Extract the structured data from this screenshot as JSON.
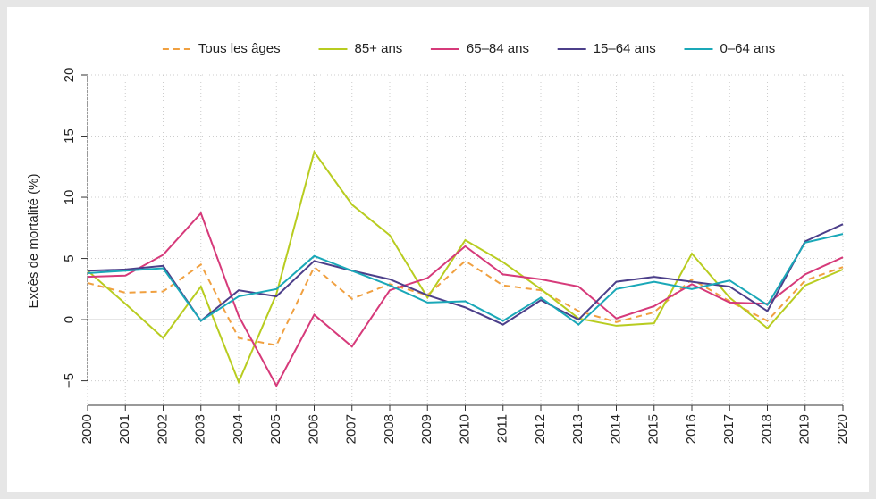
{
  "chart_data": {
    "type": "line",
    "y_label": "Excès de mortalité (%)",
    "x": [
      2000,
      2001,
      2002,
      2003,
      2004,
      2005,
      2006,
      2007,
      2008,
      2009,
      2010,
      2011,
      2012,
      2013,
      2014,
      2015,
      2016,
      2017,
      2018,
      2019,
      2020
    ],
    "xlim": [
      2000,
      2020
    ],
    "xticks": [
      2000,
      2001,
      2002,
      2003,
      2004,
      2005,
      2006,
      2007,
      2008,
      2009,
      2010,
      2011,
      2012,
      2013,
      2014,
      2015,
      2016,
      2017,
      2018,
      2019,
      2020
    ],
    "ylim": [
      -7,
      20
    ],
    "yticks": [
      {
        "value": -5,
        "label": "−5"
      },
      0,
      5,
      10,
      15,
      20
    ],
    "grid": true,
    "legend": "top",
    "series": [
      {
        "name": "Tous les âges",
        "color": "#f0a040",
        "dashed": true,
        "values": [
          3.0,
          2.2,
          2.3,
          4.5,
          -1.5,
          -2.1,
          4.3,
          1.7,
          2.9,
          2.0,
          4.8,
          2.8,
          2.4,
          0.7,
          -0.2,
          0.6,
          3.3,
          1.5,
          -0.1,
          3.2,
          4.3
        ]
      },
      {
        "name": "85+ ans",
        "color": "#b8cc20",
        "values": [
          4.0,
          1.3,
          -1.5,
          2.7,
          -5.1,
          2.1,
          13.7,
          9.4,
          6.9,
          1.8,
          6.5,
          4.7,
          2.5,
          0.1,
          -0.5,
          -0.3,
          5.4,
          1.8,
          -0.7,
          2.8,
          4.1
        ]
      },
      {
        "name": "65–84 ans",
        "color": "#d63a7a",
        "values": [
          3.5,
          3.6,
          5.3,
          8.7,
          0.3,
          -5.4,
          0.4,
          -2.2,
          2.4,
          3.4,
          6.0,
          3.7,
          3.3,
          2.7,
          0.1,
          1.1,
          2.9,
          1.4,
          1.3,
          3.7,
          5.1
        ]
      },
      {
        "name": "15–64 ans",
        "color": "#4c3f8a",
        "values": [
          4.0,
          4.1,
          4.4,
          -0.1,
          2.4,
          1.9,
          4.8,
          4.0,
          3.3,
          2.0,
          1.0,
          -0.4,
          1.6,
          0.0,
          3.1,
          3.5,
          3.1,
          2.7,
          0.7,
          6.4,
          7.8
        ]
      },
      {
        "name": "0–64 ans",
        "color": "#1aa8b8",
        "values": [
          3.8,
          4.0,
          4.2,
          -0.1,
          1.9,
          2.5,
          5.2,
          4.0,
          2.8,
          1.4,
          1.5,
          -0.1,
          1.8,
          -0.4,
          2.5,
          3.1,
          2.5,
          3.2,
          1.2,
          6.3,
          7.0
        ]
      }
    ]
  }
}
